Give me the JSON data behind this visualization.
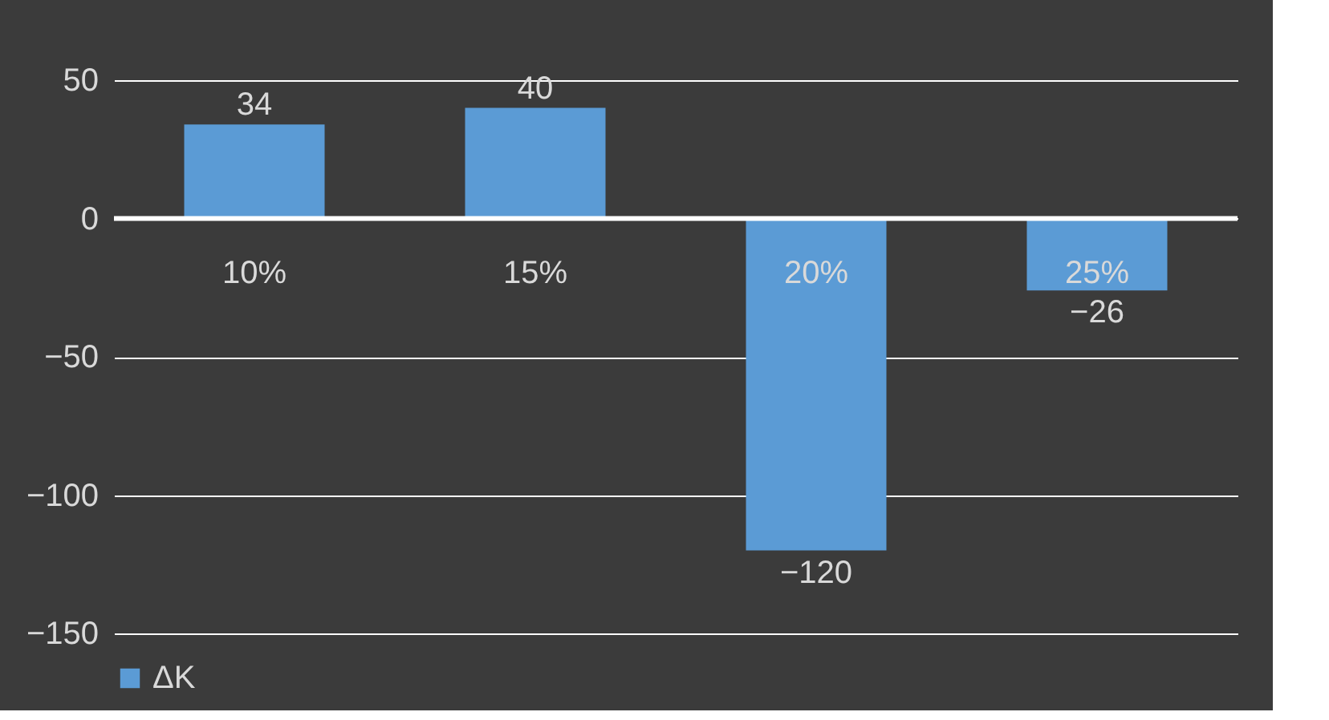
{
  "chart_data": {
    "type": "bar",
    "categories": [
      "10%",
      "15%",
      "20%",
      "25%"
    ],
    "series": [
      {
        "name": "ΔK",
        "color": "#5b9bd5",
        "values": [
          34,
          40,
          -120,
          -26
        ]
      }
    ],
    "ylim": [
      -150,
      50
    ],
    "yticks": [
      -150,
      -100,
      -50,
      0,
      50
    ],
    "grid": "y",
    "legend": "bottom",
    "data_labels": true
  }
}
